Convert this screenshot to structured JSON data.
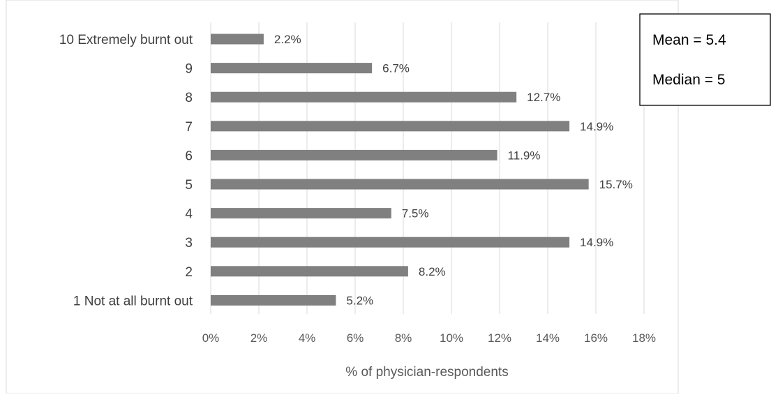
{
  "chart_data": {
    "type": "bar",
    "orientation": "horizontal",
    "categories": [
      "10 Extremely burnt out",
      "9",
      "8",
      "7",
      "6",
      "5",
      "4",
      "3",
      "2",
      "1 Not at all burnt out"
    ],
    "values": [
      2.2,
      6.7,
      12.7,
      14.9,
      11.9,
      15.7,
      7.5,
      14.9,
      8.2,
      5.2
    ],
    "data_labels": [
      "2.2%",
      "6.7%",
      "12.7%",
      "14.9%",
      "11.9%",
      "15.7%",
      "7.5%",
      "14.9%",
      "8.2%",
      "5.2%"
    ],
    "xlabel": "% of physician-respondents",
    "ylabel": "",
    "xlim": [
      0,
      18
    ],
    "x_ticks": [
      0,
      2,
      4,
      6,
      8,
      10,
      12,
      14,
      16,
      18
    ],
    "x_tick_labels": [
      "0%",
      "2%",
      "4%",
      "6%",
      "8%",
      "10%",
      "12%",
      "14%",
      "16%",
      "18%"
    ],
    "grid": true,
    "bar_color": "#808080",
    "grid_color": "#d9d9d9",
    "annotation": {
      "mean": "Mean = 5.4",
      "median": "Median = 5"
    }
  }
}
